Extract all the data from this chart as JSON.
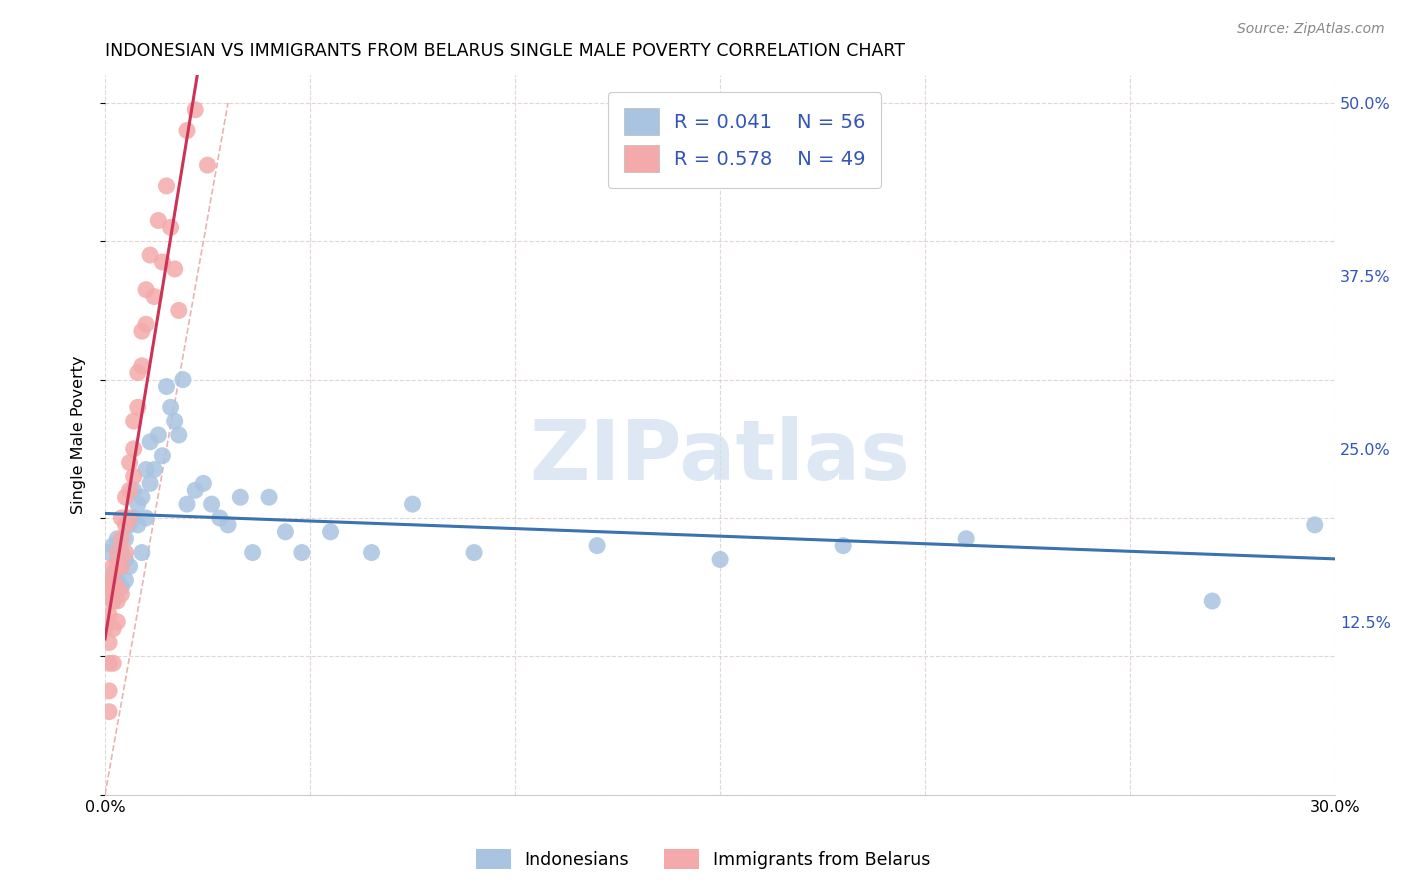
{
  "title": "INDONESIAN VS IMMIGRANTS FROM BELARUS SINGLE MALE POVERTY CORRELATION CHART",
  "source": "Source: ZipAtlas.com",
  "ylabel": "Single Male Poverty",
  "xlim": [
    0.0,
    0.3
  ],
  "ylim": [
    0.0,
    0.52
  ],
  "xticks": [
    0.0,
    0.05,
    0.1,
    0.15,
    0.2,
    0.25,
    0.3
  ],
  "xticklabels": [
    "0.0%",
    "",
    "",
    "",
    "",
    "",
    "30.0%"
  ],
  "yticks_right": [
    0.125,
    0.25,
    0.375,
    0.5
  ],
  "ytick_right_labels": [
    "12.5%",
    "25.0%",
    "37.5%",
    "50.0%"
  ],
  "legend_R1": "R = 0.041",
  "legend_N1": "N = 56",
  "legend_R2": "R = 0.578",
  "legend_N2": "N = 49",
  "blue_color": "#A8C4E0",
  "pink_color": "#F4AAAA",
  "blue_line_color": "#3B72B0",
  "pink_line_color": "#CC3355",
  "diag_color": "#E8AAAA",
  "legend_text_color": "#3355BB",
  "watermark_color": "#D0DFF0",
  "indonesians_x": [
    0.001,
    0.001,
    0.002,
    0.002,
    0.002,
    0.003,
    0.003,
    0.003,
    0.003,
    0.004,
    0.004,
    0.004,
    0.005,
    0.005,
    0.005,
    0.006,
    0.006,
    0.007,
    0.007,
    0.008,
    0.008,
    0.009,
    0.009,
    0.01,
    0.01,
    0.011,
    0.011,
    0.012,
    0.013,
    0.014,
    0.015,
    0.016,
    0.017,
    0.018,
    0.019,
    0.02,
    0.022,
    0.024,
    0.026,
    0.028,
    0.03,
    0.033,
    0.036,
    0.04,
    0.044,
    0.048,
    0.055,
    0.065,
    0.075,
    0.09,
    0.12,
    0.15,
    0.18,
    0.21,
    0.27,
    0.295
  ],
  "indonesians_y": [
    0.175,
    0.155,
    0.18,
    0.16,
    0.14,
    0.17,
    0.155,
    0.165,
    0.185,
    0.165,
    0.15,
    0.175,
    0.155,
    0.17,
    0.185,
    0.195,
    0.165,
    0.22,
    0.2,
    0.195,
    0.21,
    0.215,
    0.175,
    0.235,
    0.2,
    0.255,
    0.225,
    0.235,
    0.26,
    0.245,
    0.295,
    0.28,
    0.27,
    0.26,
    0.3,
    0.21,
    0.22,
    0.225,
    0.21,
    0.2,
    0.195,
    0.215,
    0.175,
    0.215,
    0.19,
    0.175,
    0.19,
    0.175,
    0.21,
    0.175,
    0.18,
    0.17,
    0.18,
    0.185,
    0.14,
    0.195
  ],
  "belarus_x": [
    0.0,
    0.0,
    0.001,
    0.001,
    0.001,
    0.001,
    0.001,
    0.001,
    0.001,
    0.002,
    0.002,
    0.002,
    0.002,
    0.002,
    0.003,
    0.003,
    0.003,
    0.003,
    0.003,
    0.004,
    0.004,
    0.004,
    0.004,
    0.005,
    0.005,
    0.005,
    0.006,
    0.006,
    0.006,
    0.007,
    0.007,
    0.007,
    0.008,
    0.008,
    0.009,
    0.009,
    0.01,
    0.01,
    0.011,
    0.012,
    0.013,
    0.014,
    0.015,
    0.016,
    0.017,
    0.018,
    0.02,
    0.022,
    0.025
  ],
  "belarus_y": [
    0.15,
    0.12,
    0.155,
    0.145,
    0.13,
    0.11,
    0.095,
    0.075,
    0.06,
    0.165,
    0.155,
    0.14,
    0.12,
    0.095,
    0.175,
    0.165,
    0.15,
    0.14,
    0.125,
    0.2,
    0.185,
    0.165,
    0.145,
    0.215,
    0.195,
    0.175,
    0.24,
    0.22,
    0.2,
    0.27,
    0.25,
    0.23,
    0.305,
    0.28,
    0.335,
    0.31,
    0.365,
    0.34,
    0.39,
    0.36,
    0.415,
    0.385,
    0.44,
    0.41,
    0.38,
    0.35,
    0.48,
    0.495,
    0.455
  ]
}
